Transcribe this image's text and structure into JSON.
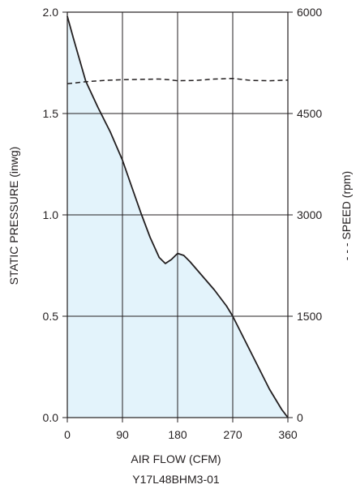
{
  "chart_data": {
    "type": "area",
    "xlabel": "AIR FLOW (CFM)",
    "ylabel": "STATIC PRESSURE (inwg)",
    "y2label": "- - - SPEED (rpm)",
    "model": "Y17L48BHM3-01",
    "xlim": [
      0,
      360
    ],
    "ylim": [
      0,
      2.0
    ],
    "y2lim": [
      0,
      6000
    ],
    "x_ticks": [
      0,
      90,
      180,
      270,
      360
    ],
    "x_tick_labels": [
      "0",
      "90",
      "180",
      "270",
      "360"
    ],
    "y_ticks": [
      0,
      0.5,
      1.0,
      1.5,
      2.0
    ],
    "y_tick_labels": [
      "0.0",
      "0.5",
      "1.0",
      "1.5",
      "2.0"
    ],
    "y2_ticks": [
      0,
      1500,
      3000,
      4500,
      6000
    ],
    "y2_tick_labels": [
      "0",
      "1500",
      "3000",
      "4500",
      "6000"
    ],
    "grid": true,
    "series": [
      {
        "name": "STATIC PRESSURE",
        "axis": "left",
        "style": "solid",
        "fill": "#e3f3fb",
        "color": "#231f20",
        "x": [
          0,
          10,
          30,
          50,
          70,
          90,
          105,
          120,
          135,
          150,
          160,
          170,
          180,
          190,
          200,
          220,
          240,
          260,
          270,
          290,
          310,
          330,
          350,
          360
        ],
        "y": [
          1.98,
          1.87,
          1.66,
          1.53,
          1.41,
          1.27,
          1.14,
          1.01,
          0.89,
          0.79,
          0.76,
          0.78,
          0.81,
          0.8,
          0.77,
          0.7,
          0.63,
          0.55,
          0.5,
          0.38,
          0.26,
          0.14,
          0.04,
          0.0
        ]
      },
      {
        "name": "SPEED",
        "axis": "right",
        "style": "dashed",
        "color": "#231f20",
        "x": [
          0,
          30,
          60,
          90,
          120,
          150,
          165,
          180,
          210,
          240,
          270,
          300,
          330,
          360
        ],
        "y": [
          4940,
          4970,
          4990,
          5000,
          5005,
          5010,
          5000,
          4985,
          4990,
          5010,
          5020,
          4990,
          4985,
          4995
        ]
      }
    ]
  },
  "colors": {
    "fill": "#e3f3fb",
    "line": "#231f20",
    "grid": "#231f20"
  }
}
